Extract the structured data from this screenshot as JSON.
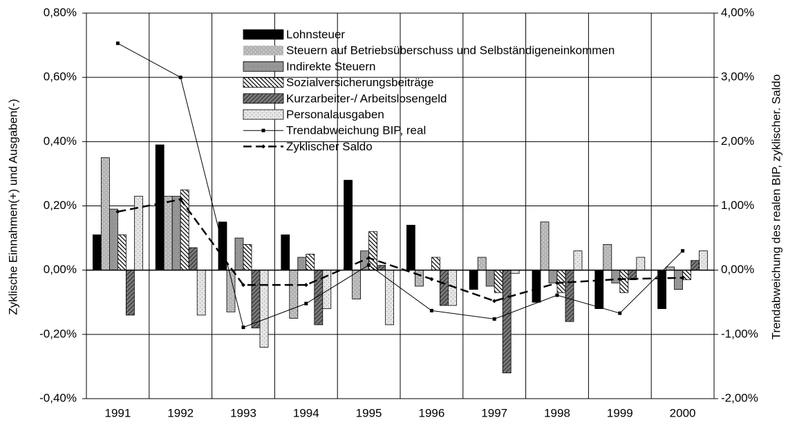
{
  "chart_data": {
    "type": "bar",
    "y_label": "Zyklische Einnahmen(+) und Ausgaben(-)",
    "y2_label": "Trendabweichung des realen BIP, zyklischer. Saldo",
    "categories": [
      "1991",
      "1992",
      "1993",
      "1994",
      "1995",
      "1996",
      "1997",
      "1998",
      "1999",
      "2000"
    ],
    "ylim": [
      -0.4,
      0.8
    ],
    "yticks": [
      {
        "value": -0.4,
        "label": "-0,40%"
      },
      {
        "value": -0.2,
        "label": "-0,20%"
      },
      {
        "value": 0,
        "label": "0,00%"
      },
      {
        "value": 0.2,
        "label": "0,20%"
      },
      {
        "value": 0.4,
        "label": "0,40%"
      },
      {
        "value": 0.6,
        "label": "0,60%"
      },
      {
        "value": 0.8,
        "label": "0,80%"
      }
    ],
    "y2lim": [
      -2,
      4
    ],
    "y2ticks": [
      {
        "value": -2,
        "label": "-2,00%"
      },
      {
        "value": -1,
        "label": "-1,00%"
      },
      {
        "value": 0,
        "label": "0,00%"
      },
      {
        "value": 1,
        "label": "1,00%"
      },
      {
        "value": 2,
        "label": "2,00%"
      },
      {
        "value": 3,
        "label": "3,00%"
      },
      {
        "value": 4,
        "label": "4,00%"
      }
    ],
    "grid": true,
    "series": [
      {
        "name": "Lohnsteuer",
        "color": "#000000",
        "values": [
          0.11,
          0.39,
          0.15,
          0.11,
          0.28,
          0.14,
          -0.06,
          -0.1,
          -0.12,
          -0.12
        ]
      },
      {
        "name": "Steuern auf Betriebsüberschuss und Selbständigeneinkommen",
        "color": "#b4b4b4",
        "values": [
          0.35,
          0.23,
          -0.13,
          -0.15,
          -0.09,
          -0.05,
          0.04,
          0.15,
          0.08,
          0.01
        ]
      },
      {
        "name": "Indirekte Steuern",
        "color": "#969696",
        "values": [
          0.19,
          0.23,
          0.1,
          0.04,
          0.06,
          0.0,
          -0.05,
          -0.04,
          -0.04,
          -0.06
        ]
      },
      {
        "name": "Sozialversicherungsbeiträge",
        "color": "#ffffff",
        "values": [
          0.11,
          0.25,
          0.08,
          0.05,
          0.12,
          0.04,
          -0.07,
          -0.07,
          -0.07,
          -0.03
        ]
      },
      {
        "name": "Kurzarbeiter-/ Arbeitslosengeld",
        "color": "#7a7a7a",
        "values": [
          -0.14,
          0.07,
          -0.18,
          -0.17,
          0.015,
          -0.11,
          -0.32,
          -0.16,
          -0.03,
          0.03
        ]
      },
      {
        "name": "Personalausgaben",
        "color": "#e4e4e4",
        "values": [
          0.23,
          -0.14,
          -0.24,
          -0.12,
          -0.17,
          -0.11,
          -0.01,
          0.06,
          0.04,
          0.06
        ]
      },
      {
        "name": "Trendabweichung BIP, real",
        "type": "line",
        "axis": "y2",
        "color": "#000000",
        "values": [
          3.53,
          3.0,
          -0.89,
          -0.52,
          0.08,
          -0.63,
          -0.76,
          -0.39,
          -0.67,
          0.3
        ]
      },
      {
        "name": "Zyklischer Saldo",
        "type": "line",
        "axis": "y2",
        "color": "#000000",
        "dashed": true,
        "values": [
          0.91,
          1.1,
          -0.23,
          -0.23,
          0.19,
          -0.14,
          -0.48,
          -0.2,
          -0.14,
          -0.12
        ]
      }
    ]
  }
}
